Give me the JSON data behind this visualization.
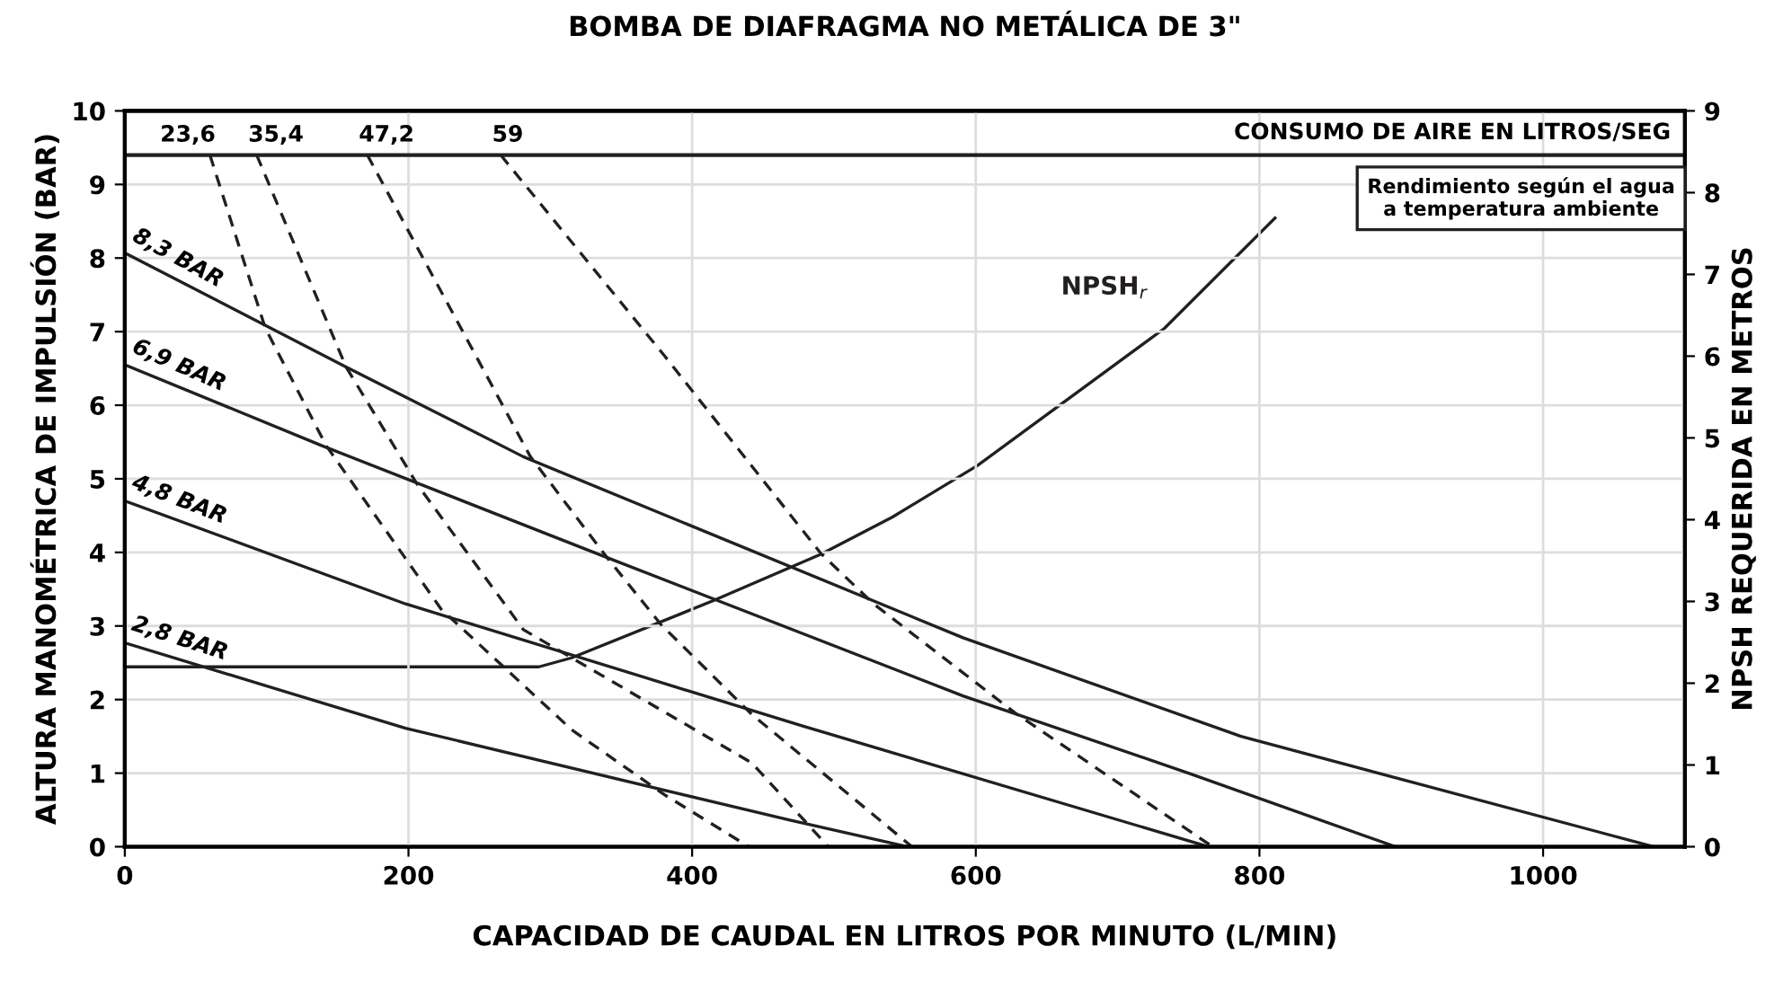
{
  "chart_data": {
    "type": "line",
    "title": "BOMBA DE DIAFRAGMA NO METÁLICA DE 3\"",
    "xlabel": "CAPACIDAD DE CAUDAL EN LITROS POR MINUTO (L/MIN)",
    "ylabel": "ALTURA MANOMÉTRICA DE IMPULSIÓN (BAR)",
    "y2label": "NPSH REQUERIDA EN METROS",
    "xlim": [
      0,
      1100
    ],
    "xticks": [
      0,
      200,
      400,
      600,
      800,
      1000
    ],
    "ylim": [
      0,
      10
    ],
    "yticks": [
      0,
      1,
      2,
      3,
      4,
      5,
      6,
      7,
      8,
      9,
      10
    ],
    "y2lim": [
      0,
      9
    ],
    "y2ticks": [
      0,
      1,
      2,
      3,
      4,
      5,
      6,
      7,
      8,
      9
    ],
    "grid": true,
    "legend": false,
    "marker": "none",
    "series": [
      {
        "name": "8,3 BAR",
        "color": "#231f20",
        "line_style": "solid",
        "x": [
          0,
          156,
          281,
          591,
          787,
          1078
        ],
        "values": [
          8.07,
          6.52,
          5.3,
          2.84,
          1.5,
          0
        ]
      },
      {
        "name": "6,9 BAR",
        "color": "#231f20",
        "line_style": "solid",
        "x": [
          0,
          139,
          340,
          591,
          750,
          896
        ],
        "values": [
          6.55,
          5.45,
          3.93,
          2.05,
          1.0,
          0
        ]
      },
      {
        "name": "4,8 BAR",
        "color": "#231f20",
        "line_style": "solid",
        "x": [
          0,
          198,
          478,
          764
        ],
        "values": [
          4.7,
          3.3,
          1.64,
          0
        ]
      },
      {
        "name": "2,8 BAR",
        "color": "#231f20",
        "line_style": "solid",
        "x": [
          0,
          198,
          469,
          552
        ],
        "values": [
          2.77,
          1.61,
          0.36,
          0
        ]
      },
      {
        "name": "23,6",
        "color": "#231f20",
        "line_style": "dashed",
        "x": [
          60,
          99,
          142,
          223,
          315,
          381,
          440
        ],
        "values": [
          9.4,
          7.05,
          5.45,
          3.23,
          1.59,
          0.7,
          0
        ]
      },
      {
        "name": "35,4",
        "color": "#231f20",
        "line_style": "dashed",
        "x": [
          93,
          156,
          206,
          281,
          442,
          496
        ],
        "values": [
          9.4,
          6.52,
          4.93,
          2.95,
          1.14,
          0
        ]
      },
      {
        "name": "47,2",
        "color": "#231f20",
        "line_style": "dashed",
        "x": [
          171,
          286,
          340,
          378,
          442,
          555
        ],
        "values": [
          9.4,
          5.3,
          3.93,
          3.02,
          1.8,
          0
        ]
      },
      {
        "name": "59",
        "color": "#231f20",
        "line_style": "dashed",
        "x": [
          265,
          381,
          491,
          528,
          629,
          767
        ],
        "values": [
          9.4,
          6.66,
          3.98,
          3.3,
          1.8,
          0
        ]
      },
      {
        "name": "NPSH$_{r}$",
        "color": "#231f20",
        "line_style": "solid",
        "axis": "y2",
        "x": [
          0,
          292,
          315,
          415,
          491,
          541,
          601,
          733,
          811
        ],
        "values": [
          2.2,
          2.2,
          2.31,
          3.01,
          3.58,
          4.03,
          4.66,
          6.34,
          7.69
        ]
      }
    ],
    "ref_lines": [
      {
        "axis": "y",
        "value": 9.4,
        "label": "CONSUMO DE AIRE EN LITROS/SEG",
        "color": "#231f20",
        "line_style": "solid"
      }
    ],
    "annotations": [
      "Rendimiento según el agua\na temperatura ambiente"
    ]
  }
}
